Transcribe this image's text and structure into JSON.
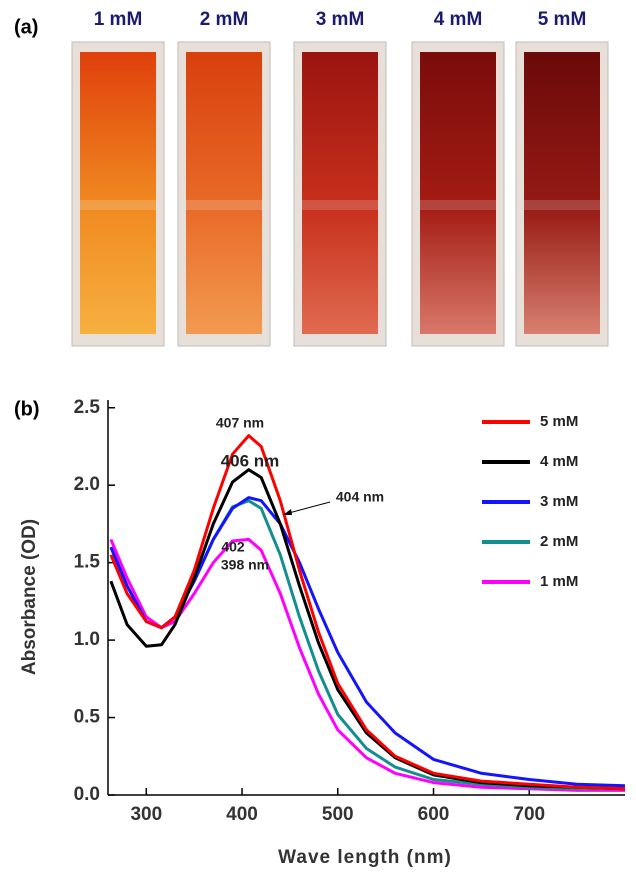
{
  "panel_a": {
    "label": "(a)",
    "cuvettes": [
      "1 mM",
      "2 mM",
      "3 mM",
      "4 mM",
      "5 mM"
    ]
  },
  "chart_data": {
    "type": "line",
    "panel_label": "(b)",
    "x_label": "Wave length (nm)",
    "y_label": "Absorbance (OD)",
    "x": [
      263,
      280,
      300,
      316,
      330,
      350,
      370,
      390,
      407,
      420,
      440,
      460,
      480,
      500,
      530,
      560,
      600,
      650,
      700,
      750,
      800
    ],
    "series": [
      {
        "name": "5 mM",
        "color": "#ff0000",
        "values": [
          1.55,
          1.3,
          1.12,
          1.08,
          1.15,
          1.45,
          1.85,
          2.2,
          2.32,
          2.25,
          1.9,
          1.45,
          1.05,
          0.72,
          0.42,
          0.25,
          0.14,
          0.09,
          0.07,
          0.05,
          0.04
        ]
      },
      {
        "name": "4 mM",
        "color": "#000000",
        "values": [
          1.38,
          1.1,
          0.96,
          0.97,
          1.1,
          1.4,
          1.75,
          2.02,
          2.1,
          2.05,
          1.75,
          1.35,
          0.98,
          0.68,
          0.4,
          0.24,
          0.13,
          0.08,
          0.06,
          0.05,
          0.04
        ]
      },
      {
        "name": "3 mM",
        "color": "#1414ff",
        "values": [
          1.6,
          1.35,
          1.12,
          1.08,
          1.15,
          1.38,
          1.65,
          1.85,
          1.92,
          1.9,
          1.75,
          1.5,
          1.2,
          0.92,
          0.6,
          0.4,
          0.23,
          0.14,
          0.1,
          0.07,
          0.06
        ]
      },
      {
        "name": "2 mM",
        "color": "#138f8f",
        "values": [
          1.6,
          1.35,
          1.12,
          1.08,
          1.15,
          1.38,
          1.65,
          1.86,
          1.9,
          1.85,
          1.55,
          1.15,
          0.8,
          0.52,
          0.3,
          0.18,
          0.1,
          0.07,
          0.05,
          0.04,
          0.04
        ]
      },
      {
        "name": "1 mM",
        "color": "#ff00ff",
        "values": [
          1.65,
          1.4,
          1.15,
          1.08,
          1.12,
          1.3,
          1.5,
          1.64,
          1.65,
          1.58,
          1.3,
          0.95,
          0.65,
          0.42,
          0.24,
          0.14,
          0.08,
          0.05,
          0.04,
          0.03,
          0.03
        ]
      }
    ],
    "annotations": [
      "407 nm",
      "406 nm",
      "404 nm",
      "402",
      "398 nm"
    ],
    "xlim": [
      260,
      800
    ],
    "xticks": [
      300,
      400,
      500,
      600,
      700
    ],
    "ylim": [
      0,
      2.55
    ],
    "yticks": [
      {
        "value": 0,
        "label": "0.0"
      },
      0.5,
      {
        "value": 1,
        "label": "1.0"
      },
      1.5,
      {
        "value": 2,
        "label": "2.0"
      },
      2.5
    ],
    "legend": "upper right",
    "grid": false
  }
}
